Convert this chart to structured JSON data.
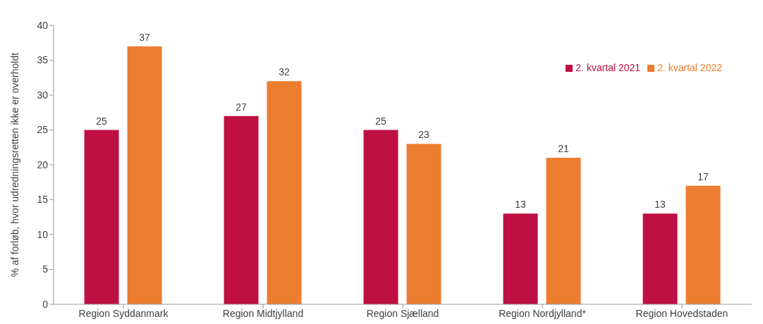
{
  "chart_data": {
    "type": "bar",
    "ylabel": "% af forløb, hvor udredningsretten ikke er overholdt",
    "categories": [
      "Region Syddanmark",
      "Region Midtjylland",
      "Region Sjælland",
      "Region Nordjylland*",
      "Region Hovedstaden"
    ],
    "series": [
      {
        "name": "2. kvartal 2021",
        "color": "#be0f42",
        "values": [
          25,
          27,
          25,
          13,
          13
        ]
      },
      {
        "name": "2. kvartal 2022",
        "color": "#ed7d31",
        "values": [
          37,
          32,
          23,
          21,
          17
        ]
      }
    ],
    "ylim": [
      0,
      40
    ],
    "yticks": [
      0,
      5,
      10,
      15,
      20,
      25,
      30,
      35,
      40
    ],
    "grid": false,
    "legend": "top right",
    "data_labels": true
  }
}
